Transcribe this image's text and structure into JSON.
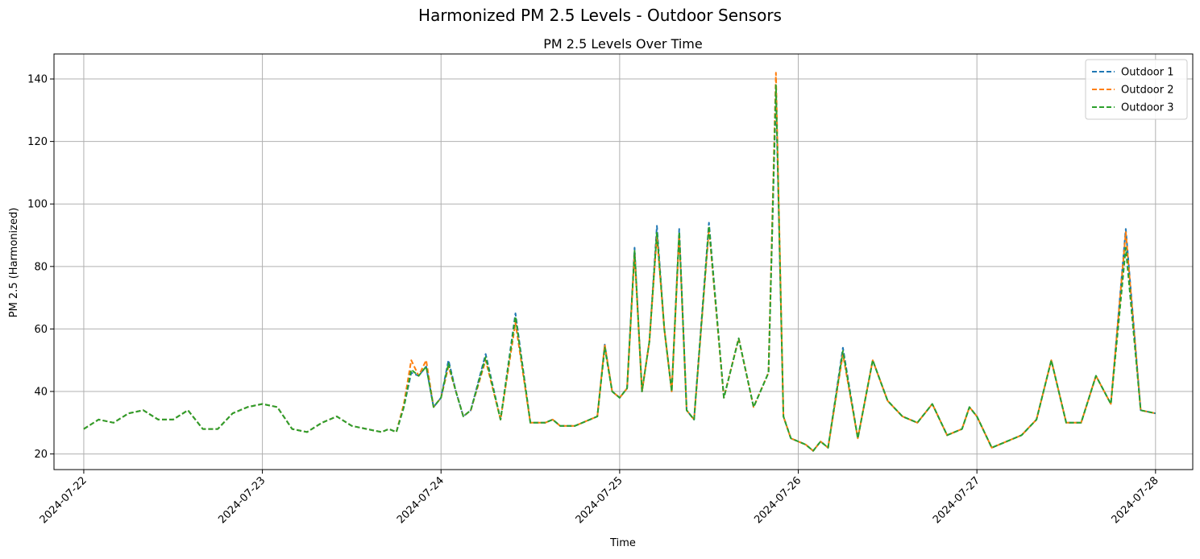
{
  "figure": {
    "suptitle": "Harmonized PM 2.5 Levels - Outdoor Sensors"
  },
  "chart_data": {
    "type": "line",
    "title": "PM 2.5 Levels Over Time",
    "xlabel": "Time",
    "ylabel": "PM 2.5 (Harmonized)",
    "x_is_date": true,
    "xlim": [
      "2024-07-21T20:00",
      "2024-07-28T05:00"
    ],
    "ylim": [
      15,
      148
    ],
    "x_ticks": [
      "2024-07-22",
      "2024-07-23",
      "2024-07-24",
      "2024-07-25",
      "2024-07-26",
      "2024-07-27",
      "2024-07-28"
    ],
    "y_ticks": [
      20,
      40,
      60,
      80,
      100,
      120,
      140
    ],
    "grid": true,
    "legend_position": "top-right",
    "line_style": "dashed",
    "x": [
      "2024-07-22T00:00",
      "2024-07-22T02:00",
      "2024-07-22T04:00",
      "2024-07-22T06:00",
      "2024-07-22T08:00",
      "2024-07-22T10:00",
      "2024-07-22T12:00",
      "2024-07-22T14:00",
      "2024-07-22T16:00",
      "2024-07-22T18:00",
      "2024-07-22T20:00",
      "2024-07-22T22:00",
      "2024-07-23T00:00",
      "2024-07-23T02:00",
      "2024-07-23T04:00",
      "2024-07-23T06:00",
      "2024-07-23T08:00",
      "2024-07-23T10:00",
      "2024-07-23T12:00",
      "2024-07-23T14:00",
      "2024-07-23T16:00",
      "2024-07-23T17:00",
      "2024-07-23T18:00",
      "2024-07-23T19:00",
      "2024-07-23T20:00",
      "2024-07-23T21:00",
      "2024-07-23T22:00",
      "2024-07-23T23:00",
      "2024-07-24T00:00",
      "2024-07-24T01:00",
      "2024-07-24T02:00",
      "2024-07-24T03:00",
      "2024-07-24T04:00",
      "2024-07-24T06:00",
      "2024-07-24T08:00",
      "2024-07-24T10:00",
      "2024-07-24T12:00",
      "2024-07-24T14:00",
      "2024-07-24T15:00",
      "2024-07-24T16:00",
      "2024-07-24T18:00",
      "2024-07-24T20:00",
      "2024-07-24T21:00",
      "2024-07-24T22:00",
      "2024-07-24T23:00",
      "2024-07-25T00:00",
      "2024-07-25T01:00",
      "2024-07-25T02:00",
      "2024-07-25T03:00",
      "2024-07-25T04:00",
      "2024-07-25T05:00",
      "2024-07-25T06:00",
      "2024-07-25T07:00",
      "2024-07-25T08:00",
      "2024-07-25T09:00",
      "2024-07-25T10:00",
      "2024-07-25T12:00",
      "2024-07-25T14:00",
      "2024-07-25T16:00",
      "2024-07-25T18:00",
      "2024-07-25T20:00",
      "2024-07-25T21:00",
      "2024-07-25T22:00",
      "2024-07-25T23:00",
      "2024-07-26T00:00",
      "2024-07-26T01:00",
      "2024-07-26T02:00",
      "2024-07-26T03:00",
      "2024-07-26T04:00",
      "2024-07-26T06:00",
      "2024-07-26T08:00",
      "2024-07-26T10:00",
      "2024-07-26T12:00",
      "2024-07-26T14:00",
      "2024-07-26T16:00",
      "2024-07-26T18:00",
      "2024-07-26T20:00",
      "2024-07-26T22:00",
      "2024-07-26T23:00",
      "2024-07-27T00:00",
      "2024-07-27T02:00",
      "2024-07-27T04:00",
      "2024-07-27T06:00",
      "2024-07-27T08:00",
      "2024-07-27T10:00",
      "2024-07-27T12:00",
      "2024-07-27T14:00",
      "2024-07-27T16:00",
      "2024-07-27T18:00",
      "2024-07-27T20:00",
      "2024-07-27T22:00",
      "2024-07-28T00:00"
    ],
    "series": [
      {
        "name": "Outdoor 1",
        "color": "#1f77b4",
        "values": [
          28,
          31,
          30,
          33,
          34,
          31,
          31,
          34,
          28,
          28,
          33,
          35,
          36,
          35,
          28,
          27,
          30,
          32,
          29,
          28,
          27,
          28,
          27,
          35,
          46,
          45,
          48,
          35,
          38,
          50,
          40,
          32,
          34,
          52,
          31,
          65,
          30,
          30,
          31,
          29,
          29,
          31,
          32,
          55,
          40,
          38,
          41,
          86,
          40,
          56,
          93,
          60,
          40,
          92,
          34,
          31,
          94,
          38,
          57,
          35,
          46,
          136,
          32,
          25,
          24,
          23,
          21,
          24,
          22,
          54,
          25,
          50,
          37,
          32,
          30,
          36,
          26,
          28,
          35,
          32,
          22,
          24,
          26,
          31,
          50,
          30,
          30,
          45,
          36,
          92,
          34,
          33
        ]
      },
      {
        "name": "Outdoor 2",
        "color": "#ff7f0e",
        "values": [
          28,
          31,
          30,
          33,
          34,
          31,
          31,
          34,
          28,
          28,
          33,
          35,
          36,
          35,
          28,
          27,
          30,
          32,
          29,
          28,
          27,
          28,
          27,
          36,
          50,
          45,
          50,
          35,
          38,
          48,
          40,
          32,
          34,
          50,
          31,
          62,
          30,
          30,
          31,
          29,
          29,
          31,
          32,
          55,
          40,
          38,
          41,
          84,
          40,
          56,
          90,
          60,
          40,
          90,
          34,
          31,
          92,
          38,
          57,
          35,
          46,
          142,
          32,
          25,
          24,
          23,
          21,
          24,
          22,
          52,
          25,
          50,
          37,
          32,
          30,
          36,
          26,
          28,
          35,
          32,
          22,
          24,
          26,
          31,
          50,
          30,
          30,
          45,
          36,
          91,
          34,
          33
        ]
      },
      {
        "name": "Outdoor 3",
        "color": "#2ca02c",
        "values": [
          28,
          31,
          30,
          33,
          34,
          31,
          31,
          34,
          28,
          28,
          33,
          35,
          36,
          35,
          28,
          27,
          30,
          32,
          29,
          28,
          27,
          28,
          27,
          35,
          47,
          45,
          48,
          35,
          38,
          49,
          40,
          32,
          34,
          51,
          31,
          64,
          30,
          30,
          31,
          29,
          29,
          31,
          32,
          54,
          40,
          38,
          41,
          85,
          40,
          56,
          91,
          60,
          40,
          91,
          34,
          31,
          93,
          38,
          57,
          35,
          46,
          138,
          32,
          25,
          24,
          23,
          21,
          24,
          22,
          53,
          25,
          50,
          37,
          32,
          30,
          36,
          26,
          28,
          35,
          32,
          22,
          24,
          26,
          31,
          50,
          30,
          30,
          45,
          36,
          86,
          34,
          33
        ]
      }
    ]
  }
}
